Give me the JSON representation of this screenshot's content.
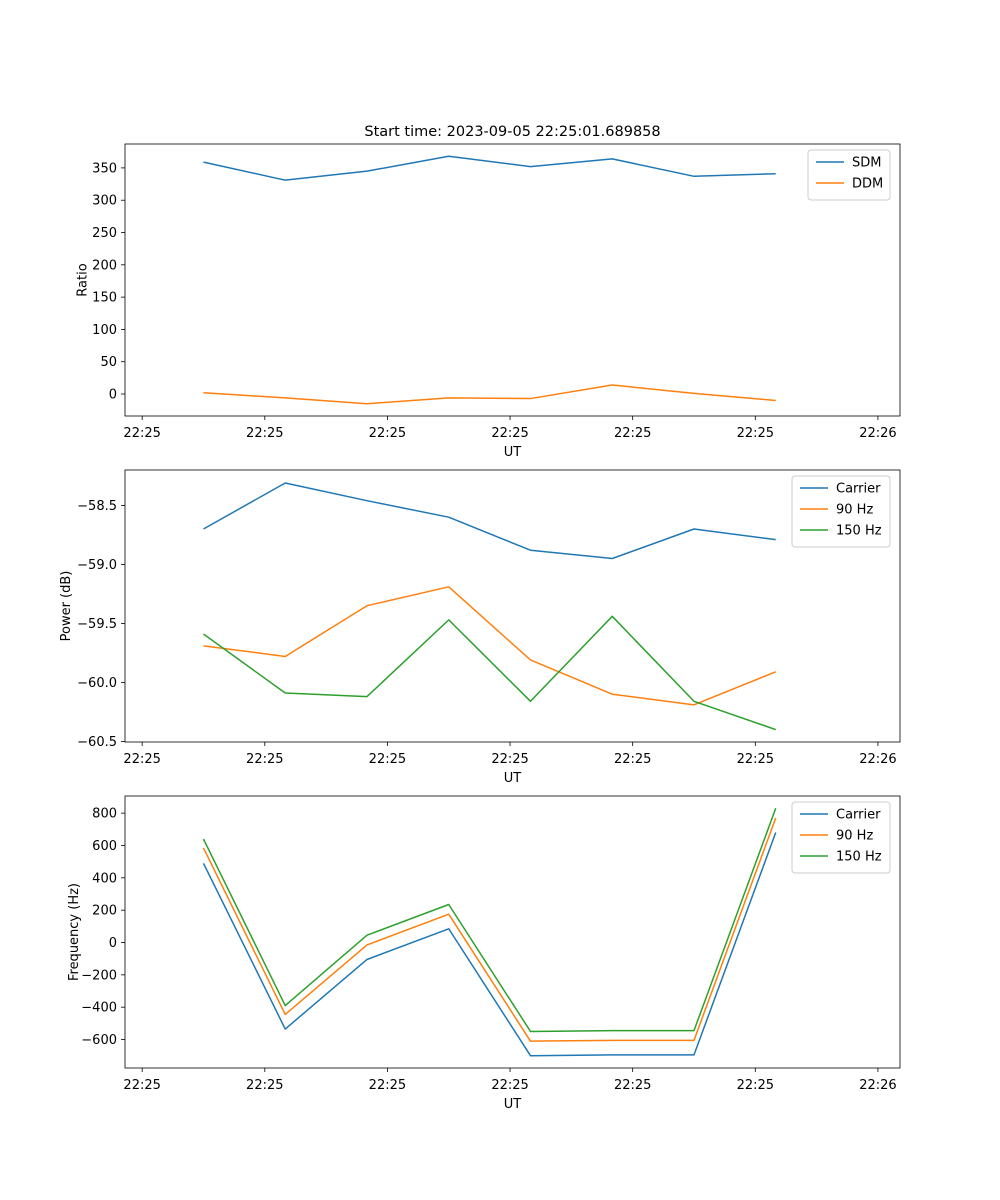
{
  "figure_title": "Start time: 2023-09-05 22:25:01.689858",
  "chart_data": [
    {
      "type": "line",
      "title": "Start time: 2023-09-05 22:25:01.689858",
      "xlabel": "UT",
      "ylabel": "Ratio",
      "x": [
        0.75,
        1.75,
        2.75,
        3.75,
        4.75,
        5.75,
        6.75,
        7.75
      ],
      "xlim": [
        -0.21,
        9.27
      ],
      "xticks": [
        0,
        1.5,
        3,
        4.5,
        6,
        7.5,
        9
      ],
      "xtick_labels": [
        "22:25",
        "22:25",
        "22:25",
        "22:25",
        "22:25",
        "22:25",
        "22:26"
      ],
      "ylim": [
        -34,
        387
      ],
      "yticks": [
        0,
        50,
        100,
        150,
        200,
        250,
        300,
        350
      ],
      "ytick_labels": [
        "0",
        "50",
        "100",
        "150",
        "200",
        "250",
        "300",
        "350"
      ],
      "legend": "top-right",
      "series": [
        {
          "name": "SDM",
          "color": "#1f77b4",
          "values": [
            359,
            331,
            345,
            368,
            352,
            364,
            337,
            341
          ]
        },
        {
          "name": "DDM",
          "color": "#ff7f0e",
          "values": [
            2,
            -6,
            -15,
            -6,
            -7,
            14,
            1,
            -10
          ]
        }
      ]
    },
    {
      "type": "line",
      "title": "",
      "xlabel": "UT",
      "ylabel": "Power (dB)",
      "x": [
        0.75,
        1.75,
        2.75,
        3.75,
        4.75,
        5.75,
        6.75,
        7.75
      ],
      "xlim": [
        -0.21,
        9.27
      ],
      "xticks": [
        0,
        1.5,
        3,
        4.5,
        6,
        7.5,
        9
      ],
      "xtick_labels": [
        "22:25",
        "22:25",
        "22:25",
        "22:25",
        "22:25",
        "22:25",
        "22:26"
      ],
      "ylim": [
        -60.505,
        -58.2
      ],
      "yticks": [
        -60.5,
        -60.0,
        -59.5,
        -59.0,
        -58.5
      ],
      "ytick_labels": [
        "−60.5",
        "−60.0",
        "−59.5",
        "−59.0",
        "−58.5"
      ],
      "legend": "top-right",
      "series": [
        {
          "name": "Carrier",
          "color": "#1f77b4",
          "values": [
            -58.7,
            -58.31,
            -58.46,
            -58.6,
            -58.88,
            -58.95,
            -58.7,
            -58.79
          ]
        },
        {
          "name": "90 Hz",
          "color": "#ff7f0e",
          "values": [
            -59.69,
            -59.78,
            -59.35,
            -59.19,
            -59.81,
            -60.1,
            -60.19,
            -59.91
          ]
        },
        {
          "name": "150 Hz",
          "color": "#2ca02c",
          "values": [
            -59.59,
            -60.09,
            -60.12,
            -59.47,
            -60.16,
            -59.44,
            -60.16,
            -60.4
          ]
        }
      ]
    },
    {
      "type": "line",
      "title": "",
      "xlabel": "UT",
      "ylabel": "Frequency (Hz)",
      "x": [
        0.75,
        1.75,
        2.75,
        3.75,
        4.75,
        5.75,
        6.75,
        7.75
      ],
      "xlim": [
        -0.21,
        9.27
      ],
      "xticks": [
        0,
        1.5,
        3,
        4.5,
        6,
        7.5,
        9
      ],
      "xtick_labels": [
        "22:25",
        "22:25",
        "22:25",
        "22:25",
        "22:25",
        "22:25",
        "22:26"
      ],
      "ylim": [
        -776,
        906
      ],
      "yticks": [
        -600,
        -400,
        -200,
        0,
        200,
        400,
        600,
        800
      ],
      "ytick_labels": [
        "−600",
        "−400",
        "−200",
        "0",
        "200",
        "400",
        "600",
        "800"
      ],
      "legend": "top-right",
      "series": [
        {
          "name": "Carrier",
          "color": "#1f77b4",
          "values": [
            490,
            -535,
            -105,
            85,
            -700,
            -695,
            -695,
            680
          ]
        },
        {
          "name": "90 Hz",
          "color": "#ff7f0e",
          "values": [
            585,
            -445,
            -15,
            175,
            -610,
            -605,
            -605,
            770
          ]
        },
        {
          "name": "150 Hz",
          "color": "#2ca02c",
          "values": [
            640,
            -390,
            45,
            235,
            -550,
            -545,
            -545,
            830
          ]
        }
      ]
    }
  ]
}
